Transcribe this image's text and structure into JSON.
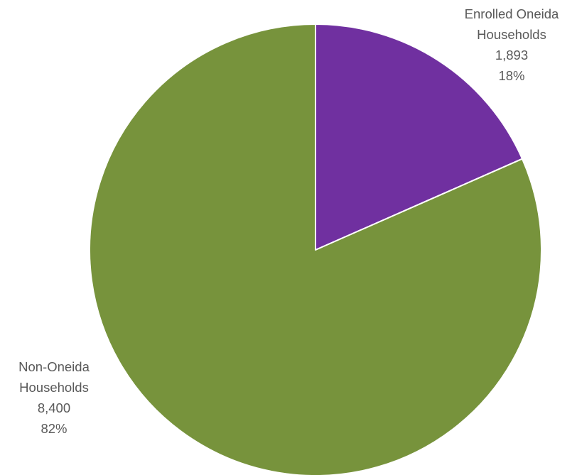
{
  "chart_data": {
    "type": "pie",
    "title": "",
    "slices": [
      {
        "name_lines": [
          "Enrolled Oneida",
          "Households"
        ],
        "value": 1893,
        "value_label": "1,893",
        "percent_label": "18%",
        "color": "#7030a0"
      },
      {
        "name_lines": [
          "Non-Oneida",
          "Households"
        ],
        "value": 8400,
        "value_label": "8,400",
        "percent_label": "82%",
        "color": "#77933c"
      }
    ],
    "start_angle_deg": 0,
    "direction": "clockwise",
    "legend": "none"
  }
}
